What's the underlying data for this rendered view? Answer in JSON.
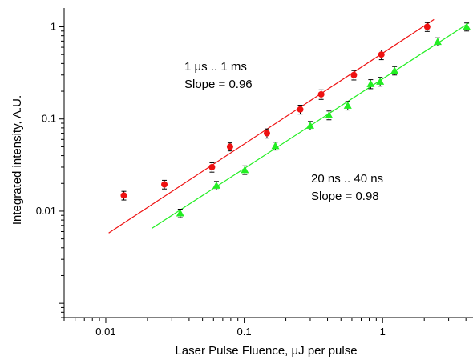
{
  "chart_data": {
    "type": "scatter",
    "xscale": "log",
    "yscale": "log",
    "xlim": [
      0.005,
      4.5
    ],
    "ylim": [
      0.0007,
      1.6
    ],
    "xlabel": "Laser Pulse Fluence, μJ per pulse",
    "ylabel": "Integrated intensity, A.U.",
    "xticks": [
      {
        "value": 0.01,
        "label": "0.01"
      },
      {
        "value": 0.1,
        "label": "0.1"
      },
      {
        "value": 1,
        "label": "1"
      }
    ],
    "yticks": [
      {
        "value": 0.01,
        "label": "0.01"
      },
      {
        "value": 0.1,
        "label": "0.1"
      },
      {
        "value": 1,
        "label": "1"
      }
    ],
    "grid": false,
    "series": [
      {
        "marker": "circle",
        "color": "#ee1111",
        "x": [
          0.0135,
          0.0265,
          0.0585,
          0.079,
          0.146,
          0.254,
          0.36,
          0.62,
          0.98,
          2.1
        ],
        "y": [
          0.0148,
          0.0195,
          0.03,
          0.05,
          0.07,
          0.127,
          0.185,
          0.3,
          0.5,
          1.0
        ],
        "err": [
          0.0016,
          0.0021,
          0.0035,
          0.005,
          0.008,
          0.014,
          0.022,
          0.035,
          0.06,
          0.11
        ],
        "fit": {
          "x": [
            0.0105,
            2.35
          ],
          "y": [
            0.0058,
            1.2
          ]
        }
      },
      {
        "marker": "triangle",
        "color": "#22ee22",
        "x": [
          0.0345,
          0.063,
          0.101,
          0.168,
          0.3,
          0.41,
          0.56,
          0.82,
          0.96,
          1.22,
          2.5,
          4.05
        ],
        "y": [
          0.0095,
          0.019,
          0.028,
          0.051,
          0.085,
          0.11,
          0.14,
          0.24,
          0.255,
          0.335,
          0.69,
          1.0
        ],
        "err": [
          0.001,
          0.002,
          0.003,
          0.005,
          0.009,
          0.012,
          0.015,
          0.027,
          0.028,
          0.035,
          0.07,
          0.1
        ],
        "fit": {
          "x": [
            0.0215,
            4.2
          ],
          "y": [
            0.0065,
            1.1
          ]
        }
      }
    ],
    "annotations": [
      {
        "line1": "1 μs .. 1 ms",
        "line2": "Slope = 0.96"
      },
      {
        "line1": "20 ns .. 40 ns",
        "line2": "Slope = 0.98"
      }
    ]
  }
}
